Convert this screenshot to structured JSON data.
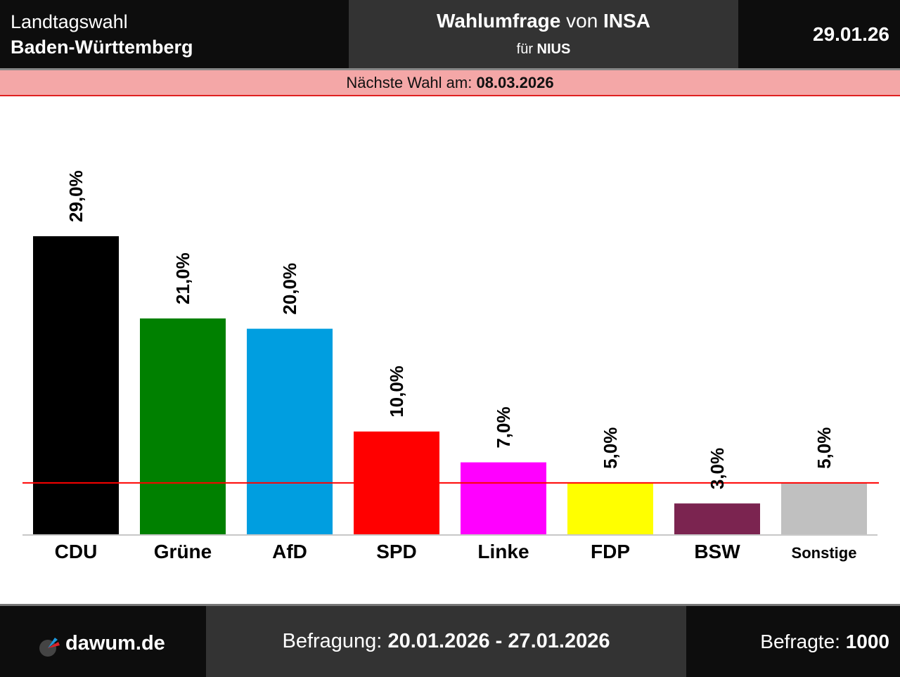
{
  "header": {
    "election_type": "Landtagswahl",
    "region": "Baden-Württemberg",
    "title_part1": "Wahlumfrage",
    "title_part2": " von ",
    "institute": "INSA",
    "client_prefix": "für ",
    "client": "NIUS",
    "date": "29.01.26"
  },
  "notice": {
    "label": "Nächste Wahl am: ",
    "date": "08.03.2026"
  },
  "footer": {
    "logo_icon": "pie-chart-logo-icon",
    "site": "dawum.de",
    "survey_label": "Befragung: ",
    "survey_period": "20.01.2026 - 27.01.2026",
    "respondents_label": "Befragte: ",
    "respondents": "1000"
  },
  "chart_data": {
    "type": "bar",
    "title": "Wahlumfrage von INSA für NIUS",
    "xlabel": "",
    "ylabel": "",
    "categories": [
      "CDU",
      "Grüne",
      "AfD",
      "SPD",
      "Linke",
      "FDP",
      "BSW",
      "Sonstige"
    ],
    "values": [
      29.0,
      21.0,
      20.0,
      10.0,
      7.0,
      5.0,
      3.0,
      5.0
    ],
    "value_labels": [
      "29,0%",
      "21,0%",
      "20,0%",
      "10,0%",
      "7,0%",
      "5,0%",
      "3,0%",
      "5,0%"
    ],
    "colors": [
      "#000000",
      "#008000",
      "#009ee0",
      "#ff0000",
      "#ff00ff",
      "#ffff00",
      "#7b2450",
      "#c0c0c0"
    ],
    "threshold": 5.0,
    "threshold_color": "#ff0000",
    "grid": false,
    "legend": "none"
  }
}
